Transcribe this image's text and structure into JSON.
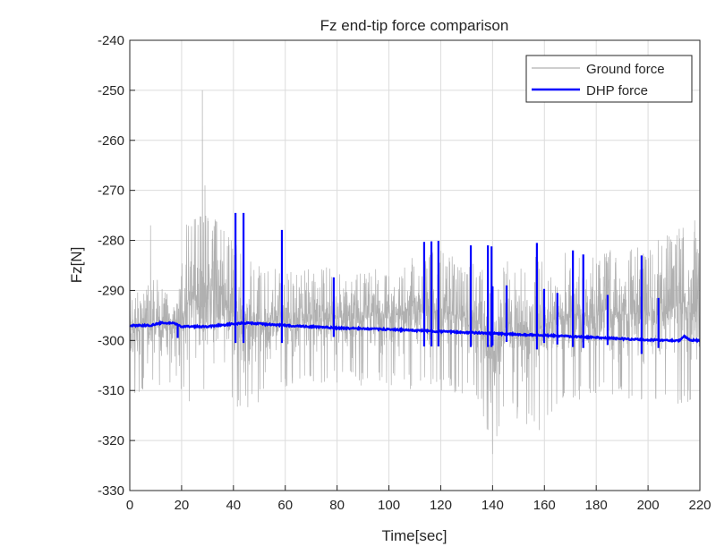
{
  "chart_data": {
    "type": "line",
    "title": "Fz end-tip force comparison",
    "xlabel": "Time[sec]",
    "ylabel": "Fz[N]",
    "xlim": [
      0,
      220
    ],
    "ylim": [
      -330,
      -240
    ],
    "xticks": [
      0,
      20,
      40,
      60,
      80,
      100,
      120,
      140,
      160,
      180,
      200,
      220
    ],
    "yticks": [
      -330,
      -320,
      -310,
      -300,
      -290,
      -280,
      -270,
      -260,
      -250,
      -240
    ],
    "grid": true,
    "legend": "top-right",
    "series": [
      {
        "name": "Ground force",
        "color": "#b0b0b0",
        "envelope": {
          "x": [
            0,
            10,
            18,
            22,
            28,
            35,
            45,
            60,
            80,
            100,
            110,
            120,
            135,
            140,
            145,
            150,
            158,
            165,
            180,
            200,
            218,
            220
          ],
          "min": [
            -311,
            -310,
            -309,
            -313,
            -312,
            -313,
            -314,
            -310,
            -309,
            -309,
            -310,
            -310,
            -312,
            -323,
            -313,
            -316,
            -318,
            -313,
            -311,
            -312,
            -313,
            -311
          ],
          "max": [
            -290,
            -287,
            -292,
            -276,
            -274,
            -276,
            -284,
            -286,
            -285,
            -286,
            -283,
            -282,
            -285,
            -289,
            -284,
            -284,
            -283,
            -282,
            -282,
            -281,
            -276,
            -284
          ]
        },
        "peaks": [
          {
            "x": 8,
            "y": -277
          },
          {
            "x": 28,
            "y": -250
          },
          {
            "x": 29,
            "y": -269
          },
          {
            "x": 140,
            "y": -289
          },
          {
            "x": 218,
            "y": -276
          }
        ]
      },
      {
        "name": "DHP force",
        "color": "#0000ff",
        "baseline": {
          "x": [
            0,
            8,
            12,
            17,
            20,
            30,
            40,
            45,
            60,
            80,
            100,
            120,
            140,
            160,
            180,
            200,
            212,
            214,
            216,
            220
          ],
          "y": [
            -297,
            -297,
            -296.5,
            -296.6,
            -297.2,
            -297.2,
            -296.7,
            -296.5,
            -297,
            -297.5,
            -297.8,
            -298.2,
            -298.6,
            -299,
            -299.4,
            -299.9,
            -300,
            -299.2,
            -299.9,
            -300
          ]
        },
        "spikes": [
          {
            "x": 18.5,
            "high": -297,
            "low": -299.5
          },
          {
            "x": 40.8,
            "high": -274.5,
            "low": -300.5
          },
          {
            "x": 43.9,
            "high": -274.5,
            "low": -300.5
          },
          {
            "x": 58.7,
            "high": -277.9,
            "low": -300.5
          },
          {
            "x": 78.7,
            "high": -287.4,
            "low": -299.3
          },
          {
            "x": 113.6,
            "high": -280.3,
            "low": -301.2
          },
          {
            "x": 116.4,
            "high": -280.2,
            "low": -301.2
          },
          {
            "x": 119.1,
            "high": -280.1,
            "low": -301.2
          },
          {
            "x": 131.6,
            "high": -281,
            "low": -301.3
          },
          {
            "x": 138.2,
            "high": -281,
            "low": -301.3
          },
          {
            "x": 139.6,
            "high": -281.2,
            "low": -301.3
          },
          {
            "x": 140.0,
            "high": -289.2,
            "low": -301
          },
          {
            "x": 145.4,
            "high": -289,
            "low": -300.3
          },
          {
            "x": 157.1,
            "high": -280.5,
            "low": -301.8
          },
          {
            "x": 159.9,
            "high": -289.7,
            "low": -300.5
          },
          {
            "x": 165.0,
            "high": -290.5,
            "low": -300.8
          },
          {
            "x": 171.0,
            "high": -282,
            "low": -301.3
          },
          {
            "x": 175.0,
            "high": -282.8,
            "low": -301.5
          },
          {
            "x": 184.4,
            "high": -290.9,
            "low": -300.9
          },
          {
            "x": 197.5,
            "high": -283,
            "low": -302.7
          },
          {
            "x": 204.0,
            "high": -291.5,
            "low": -301.5
          }
        ]
      }
    ]
  }
}
